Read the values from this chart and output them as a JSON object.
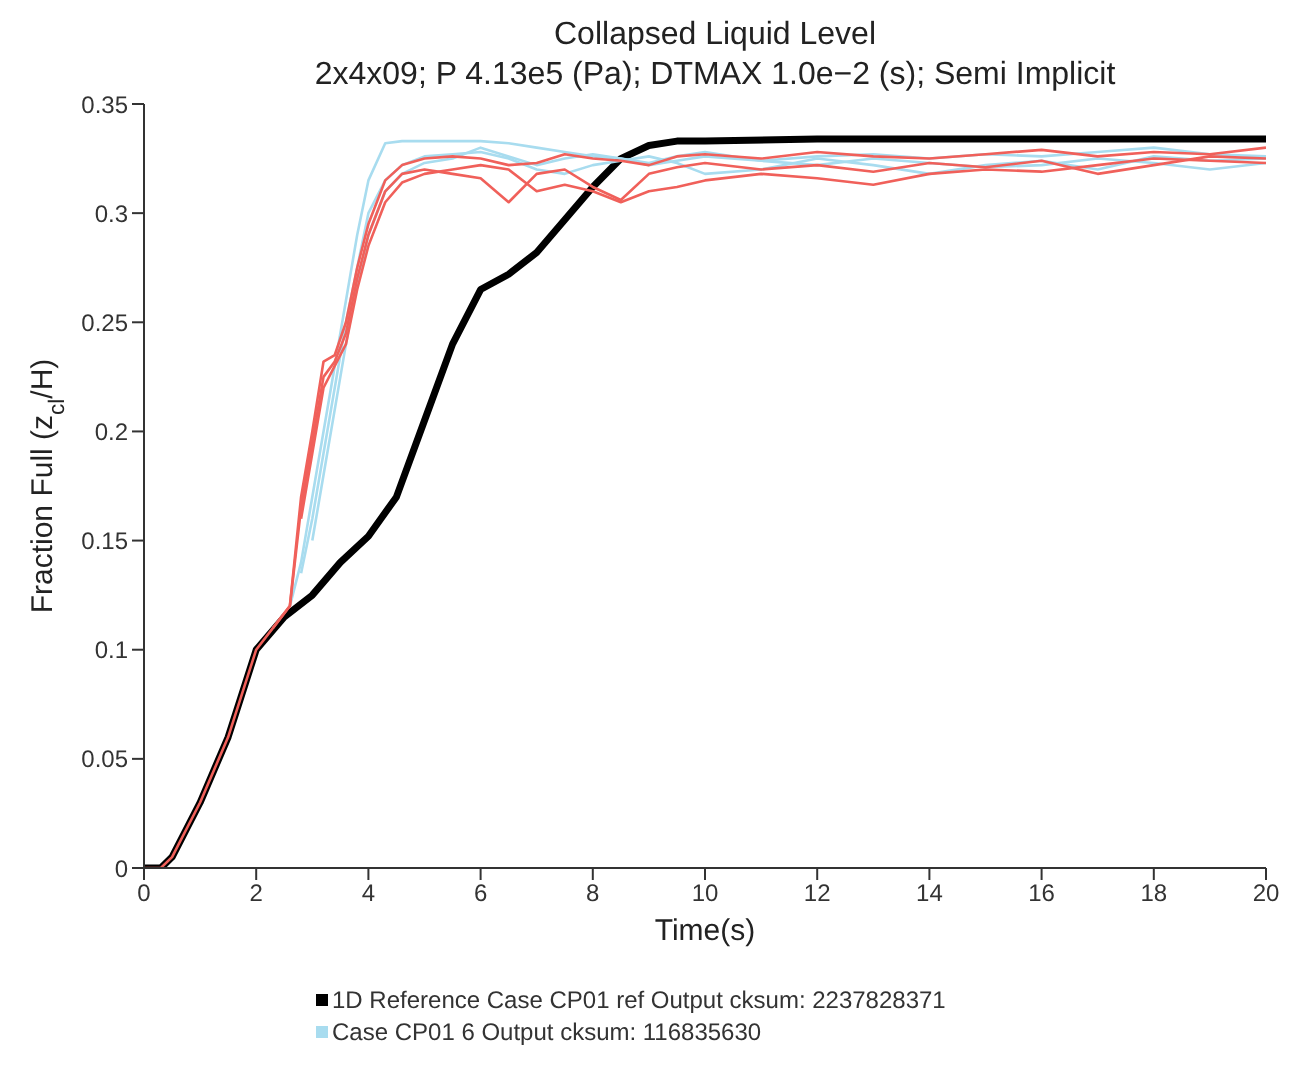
{
  "chart_data": {
    "type": "line",
    "title": "Collapsed Liquid Level",
    "subtitle": "2x4x09; P 4.13e5 (Pa); DTMAX 1.0e−2 (s); Semi Implicit",
    "xlabel": "Time(s)",
    "ylabel": "Fraction Full (z$_{cl}$/H)",
    "x": [
      0,
      0.3,
      0.5,
      1,
      1.5,
      2,
      2.3,
      2.6,
      2.8,
      3,
      3.2,
      3.4,
      3.6,
      3.8,
      4,
      4.3,
      4.6,
      5,
      5.5,
      6,
      6.5,
      7,
      7.5,
      8,
      8.5,
      9,
      9.5,
      10,
      11,
      12,
      13,
      14,
      15,
      16,
      17,
      18,
      19,
      20
    ],
    "series": [
      {
        "name": "1D Reference Case CP01  ref Output cksum: 2237828371",
        "color": "#000000",
        "x": [
          0,
          0.3,
          0.5,
          1,
          1.5,
          2,
          2.5,
          3,
          3.5,
          4,
          4.5,
          5,
          5.5,
          6,
          6.5,
          7,
          7.5,
          8,
          8.5,
          9,
          9.5,
          10,
          12,
          14,
          16,
          18,
          20
        ],
        "values": [
          0,
          0,
          0.005,
          0.03,
          0.06,
          0.1,
          0.115,
          0.125,
          0.14,
          0.152,
          0.17,
          0.205,
          0.24,
          0.265,
          0.272,
          0.282,
          0.297,
          0.312,
          0.325,
          0.331,
          0.333,
          0.333,
          0.334,
          0.334,
          0.334,
          0.334,
          0.334
        ]
      },
      {
        "name": "Case CP01 6 Output cksum: 116835630",
        "color": "#a8dcef",
        "values": [
          null,
          null,
          null,
          null,
          null,
          null,
          null,
          0.12,
          0.14,
          0.17,
          0.2,
          0.23,
          0.26,
          0.29,
          0.315,
          0.332,
          0.333,
          0.333,
          0.333,
          0.333,
          0.332,
          0.33,
          0.328,
          0.326,
          0.325,
          0.322,
          0.324,
          0.326,
          0.324,
          0.322,
          0.325,
          0.323,
          0.321,
          0.322,
          0.325,
          0.323,
          0.32,
          0.323
        ]
      },
      {
        "color": "#a8dcef",
        "values": [
          null,
          null,
          null,
          null,
          null,
          null,
          null,
          null,
          0.135,
          0.16,
          0.19,
          0.22,
          0.25,
          0.275,
          0.3,
          0.315,
          0.322,
          0.326,
          0.327,
          0.328,
          0.325,
          0.32,
          0.318,
          0.322,
          0.324,
          0.326,
          0.323,
          0.318,
          0.32,
          0.325,
          0.322,
          0.318,
          0.322,
          0.324,
          0.32,
          0.326,
          0.324,
          0.325
        ]
      },
      {
        "color": "#a8dcef",
        "values": [
          null,
          null,
          null,
          null,
          null,
          null,
          null,
          null,
          null,
          0.15,
          0.18,
          0.21,
          0.24,
          0.268,
          0.29,
          0.31,
          0.318,
          0.323,
          0.325,
          0.33,
          0.326,
          0.322,
          0.325,
          0.327,
          0.325,
          0.323,
          0.326,
          0.328,
          0.324,
          0.326,
          0.327,
          0.325,
          0.327,
          0.326,
          0.328,
          0.33,
          0.327,
          0.326
        ]
      },
      {
        "color": "#f0605a",
        "values": [
          null,
          null,
          null,
          null,
          null,
          null,
          0.11,
          0.12,
          0.165,
          0.195,
          0.225,
          0.232,
          0.245,
          0.27,
          0.29,
          0.31,
          0.318,
          0.32,
          0.318,
          0.316,
          0.305,
          0.318,
          0.32,
          0.312,
          0.306,
          0.318,
          0.321,
          0.323,
          0.32,
          0.322,
          0.319,
          0.323,
          0.321,
          0.324,
          0.318,
          0.322,
          0.326,
          0.325
        ]
      },
      {
        "color": "#f0605a",
        "values": [
          null,
          null,
          null,
          null,
          null,
          null,
          null,
          null,
          0.16,
          0.19,
          0.22,
          0.23,
          0.24,
          0.265,
          0.285,
          0.305,
          0.314,
          0.318,
          0.32,
          0.322,
          0.32,
          0.31,
          0.313,
          0.31,
          0.305,
          0.31,
          0.312,
          0.315,
          0.318,
          0.316,
          0.313,
          0.318,
          0.32,
          0.319,
          0.322,
          0.325,
          0.324,
          0.323
        ]
      },
      {
        "color": "#f0605a",
        "values": [
          0,
          0,
          0.005,
          0.03,
          0.06,
          0.1,
          0.11,
          0.12,
          0.17,
          0.2,
          0.232,
          0.235,
          0.25,
          0.275,
          0.295,
          0.315,
          0.322,
          0.325,
          0.326,
          0.325,
          0.322,
          0.323,
          0.327,
          0.325,
          0.324,
          0.322,
          0.326,
          0.327,
          0.325,
          0.328,
          0.326,
          0.325,
          0.327,
          0.329,
          0.326,
          0.328,
          0.327,
          0.33
        ]
      }
    ],
    "xlim": [
      0,
      20
    ],
    "xticks": [
      0,
      2,
      4,
      6,
      8,
      10,
      12,
      14,
      16,
      18,
      20
    ],
    "ylim": [
      0,
      0.35
    ],
    "yticks": [
      0,
      0.05,
      0.1,
      0.15,
      0.2,
      0.25,
      0.3,
      0.35
    ],
    "legend": "bottom",
    "marker": "none",
    "line_style": "solid"
  }
}
